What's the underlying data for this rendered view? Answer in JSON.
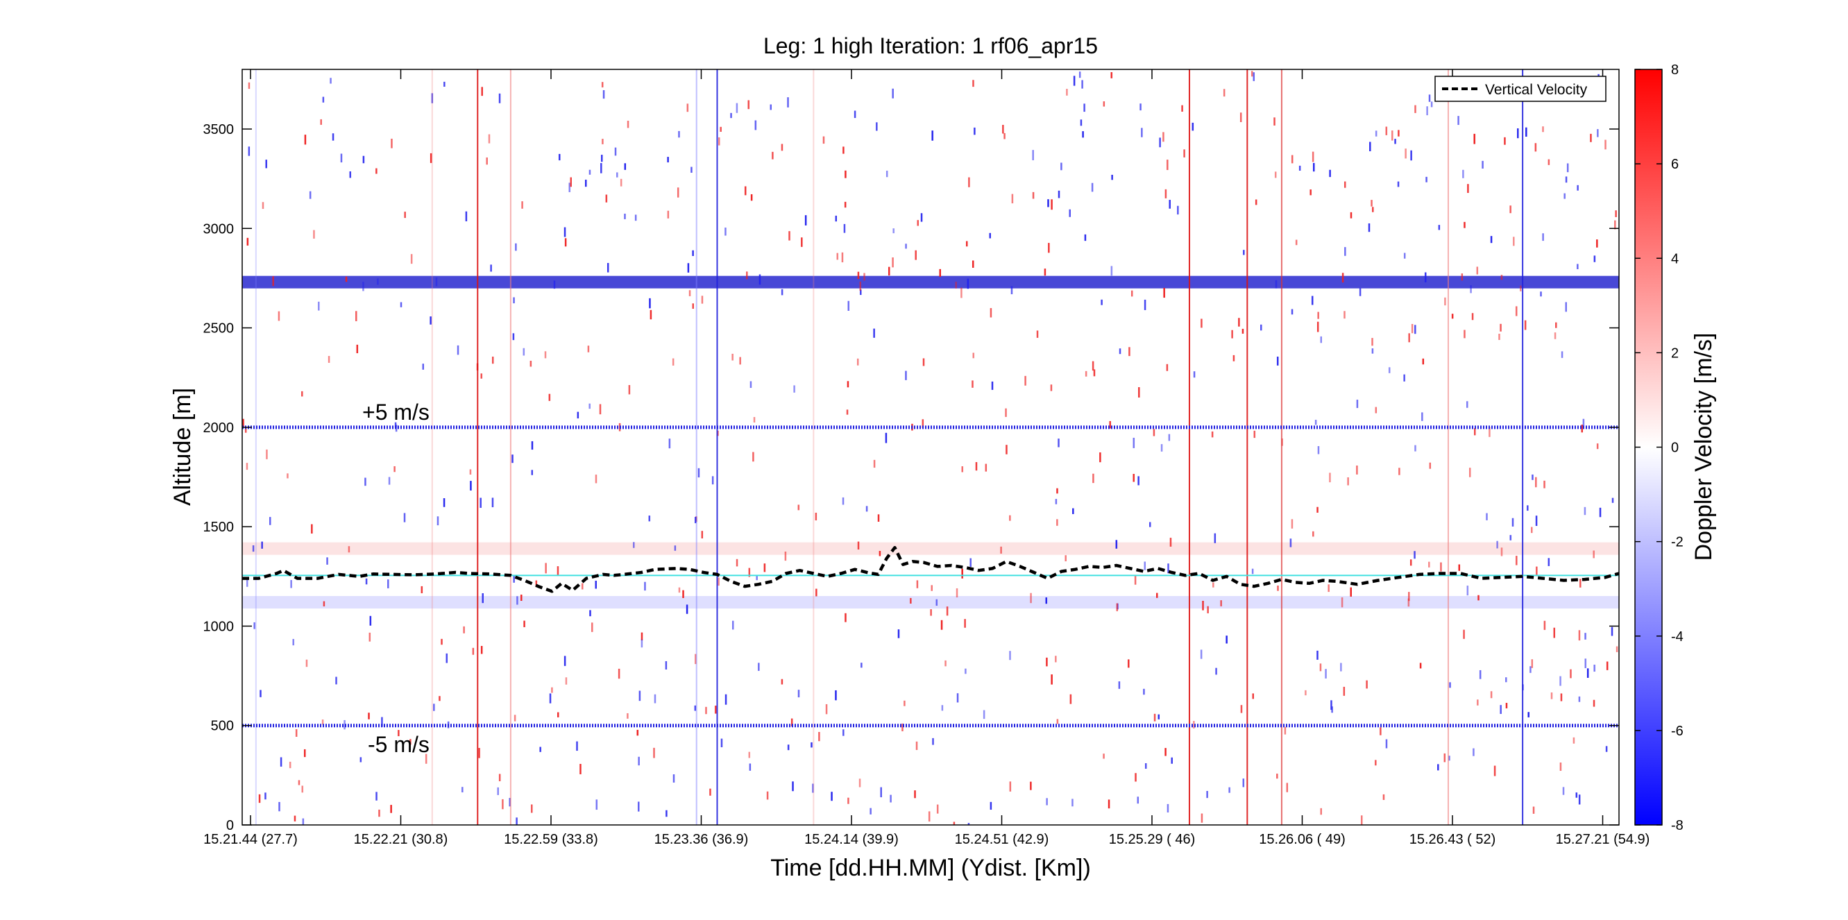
{
  "chart_data": {
    "type": "heatmap",
    "title": "Leg: 1 high Iteration: 1  rf06_apr15",
    "xlabel": "Time [dd.HH.MM]    (Ydist. [Km])",
    "ylabel": "Altitude [m]",
    "ylim": [
      0,
      3800
    ],
    "yticks": [
      0,
      500,
      1000,
      1500,
      2000,
      2500,
      3000,
      3500
    ],
    "xticks": [
      {
        "time": "15.21.44",
        "dist": "(27.7)"
      },
      {
        "time": "15.22.21",
        "dist": "(30.8)"
      },
      {
        "time": "15.22.59",
        "dist": "(33.8)"
      },
      {
        "time": "15.23.36",
        "dist": "(36.9)"
      },
      {
        "time": "15.24.14",
        "dist": "(39.9)"
      },
      {
        "time": "15.24.51",
        "dist": "(42.9)"
      },
      {
        "time": "15.25.29",
        "dist": "(  46)"
      },
      {
        "time": "15.26.06",
        "dist": "(  49)"
      },
      {
        "time": "15.26.43",
        "dist": "(  52)"
      },
      {
        "time": "15.27.21",
        "dist": "(54.9)"
      }
    ],
    "colorbar": {
      "label": "Doppler Velocity [m/s]",
      "range": [
        -8,
        8
      ],
      "ticks": [
        -8,
        -6,
        -4,
        -2,
        0,
        2,
        4,
        6,
        8
      ],
      "low_color": "#0000ff",
      "mid_color": "#ffffff",
      "high_color": "#ff0000"
    },
    "legend": {
      "entries": [
        "Vertical Velocity"
      ],
      "location": "top-right"
    },
    "annotations": [
      {
        "text": "+5 m/s",
        "altitude": 2000
      },
      {
        "text": "-5 m/s",
        "altitude": 500
      }
    ],
    "reference_lines": [
      {
        "name": "+5 m/s reference",
        "altitude": 2000,
        "color": "#2020e0"
      },
      {
        "name": "-5 m/s reference",
        "altitude": 500,
        "color": "#2020e0"
      },
      {
        "name": "flight altitude",
        "altitude": 1255,
        "color": "#40e0e0"
      }
    ],
    "bands": [
      {
        "altitude": 2730,
        "color": "#1a1acc",
        "alpha": 0.8
      },
      {
        "altitude": 1390,
        "color": "#f08080",
        "alpha": 0.22
      },
      {
        "altitude": 1120,
        "color": "#8080ff",
        "alpha": 0.25
      }
    ],
    "vertical_streaks": [
      {
        "x": 0.01,
        "color": "#8080ff",
        "alpha": 0.3
      },
      {
        "x": 0.138,
        "color": "#f08080",
        "alpha": 0.3
      },
      {
        "x": 0.171,
        "color": "#dd1111",
        "alpha": 0.9
      },
      {
        "x": 0.195,
        "color": "#f08080",
        "alpha": 0.6
      },
      {
        "x": 0.33,
        "color": "#8080ff",
        "alpha": 0.5
      },
      {
        "x": 0.345,
        "color": "#2222dd",
        "alpha": 0.9
      },
      {
        "x": 0.415,
        "color": "#f08080",
        "alpha": 0.3
      },
      {
        "x": 0.688,
        "color": "#dd1111",
        "alpha": 0.9
      },
      {
        "x": 0.73,
        "color": "#dd1111",
        "alpha": 0.9
      },
      {
        "x": 0.755,
        "color": "#dd3333",
        "alpha": 0.7
      },
      {
        "x": 0.876,
        "color": "#f08080",
        "alpha": 0.6
      },
      {
        "x": 0.93,
        "color": "#2222dd",
        "alpha": 0.9
      }
    ],
    "series": [
      {
        "name": "Vertical Velocity",
        "style": "dashed",
        "color": "#000000",
        "x": [
          0,
          0.012,
          0.025,
          0.03,
          0.04,
          0.055,
          0.07,
          0.085,
          0.095,
          0.11,
          0.125,
          0.14,
          0.155,
          0.165,
          0.18,
          0.195,
          0.205,
          0.215,
          0.225,
          0.232,
          0.24,
          0.25,
          0.262,
          0.27,
          0.28,
          0.29,
          0.3,
          0.315,
          0.325,
          0.335,
          0.345,
          0.355,
          0.365,
          0.375,
          0.385,
          0.395,
          0.405,
          0.415,
          0.425,
          0.435,
          0.445,
          0.455,
          0.462,
          0.468,
          0.474,
          0.48,
          0.487,
          0.495,
          0.505,
          0.515,
          0.525,
          0.535,
          0.545,
          0.555,
          0.565,
          0.575,
          0.585,
          0.595,
          0.605,
          0.615,
          0.625,
          0.635,
          0.645,
          0.655,
          0.665,
          0.675,
          0.685,
          0.695,
          0.705,
          0.715,
          0.725,
          0.735,
          0.745,
          0.755,
          0.765,
          0.775,
          0.785,
          0.795,
          0.81,
          0.825,
          0.84,
          0.855,
          0.87,
          0.885,
          0.9,
          0.915,
          0.93,
          0.945,
          0.96,
          0.975,
          0.99,
          1.0
        ],
        "values": [
          1240,
          1240,
          1265,
          1280,
          1240,
          1240,
          1260,
          1250,
          1262,
          1260,
          1258,
          1262,
          1270,
          1265,
          1262,
          1255,
          1230,
          1200,
          1175,
          1215,
          1180,
          1240,
          1260,
          1255,
          1262,
          1270,
          1285,
          1290,
          1285,
          1270,
          1260,
          1225,
          1200,
          1210,
          1225,
          1265,
          1280,
          1265,
          1250,
          1265,
          1285,
          1268,
          1260,
          1340,
          1395,
          1310,
          1325,
          1320,
          1300,
          1305,
          1295,
          1280,
          1290,
          1325,
          1300,
          1270,
          1240,
          1275,
          1285,
          1300,
          1295,
          1305,
          1290,
          1275,
          1290,
          1270,
          1255,
          1265,
          1230,
          1250,
          1210,
          1200,
          1215,
          1235,
          1220,
          1215,
          1230,
          1225,
          1210,
          1230,
          1245,
          1260,
          1265,
          1265,
          1240,
          1245,
          1250,
          1240,
          1230,
          1235,
          1245,
          1265
        ]
      }
    ]
  }
}
